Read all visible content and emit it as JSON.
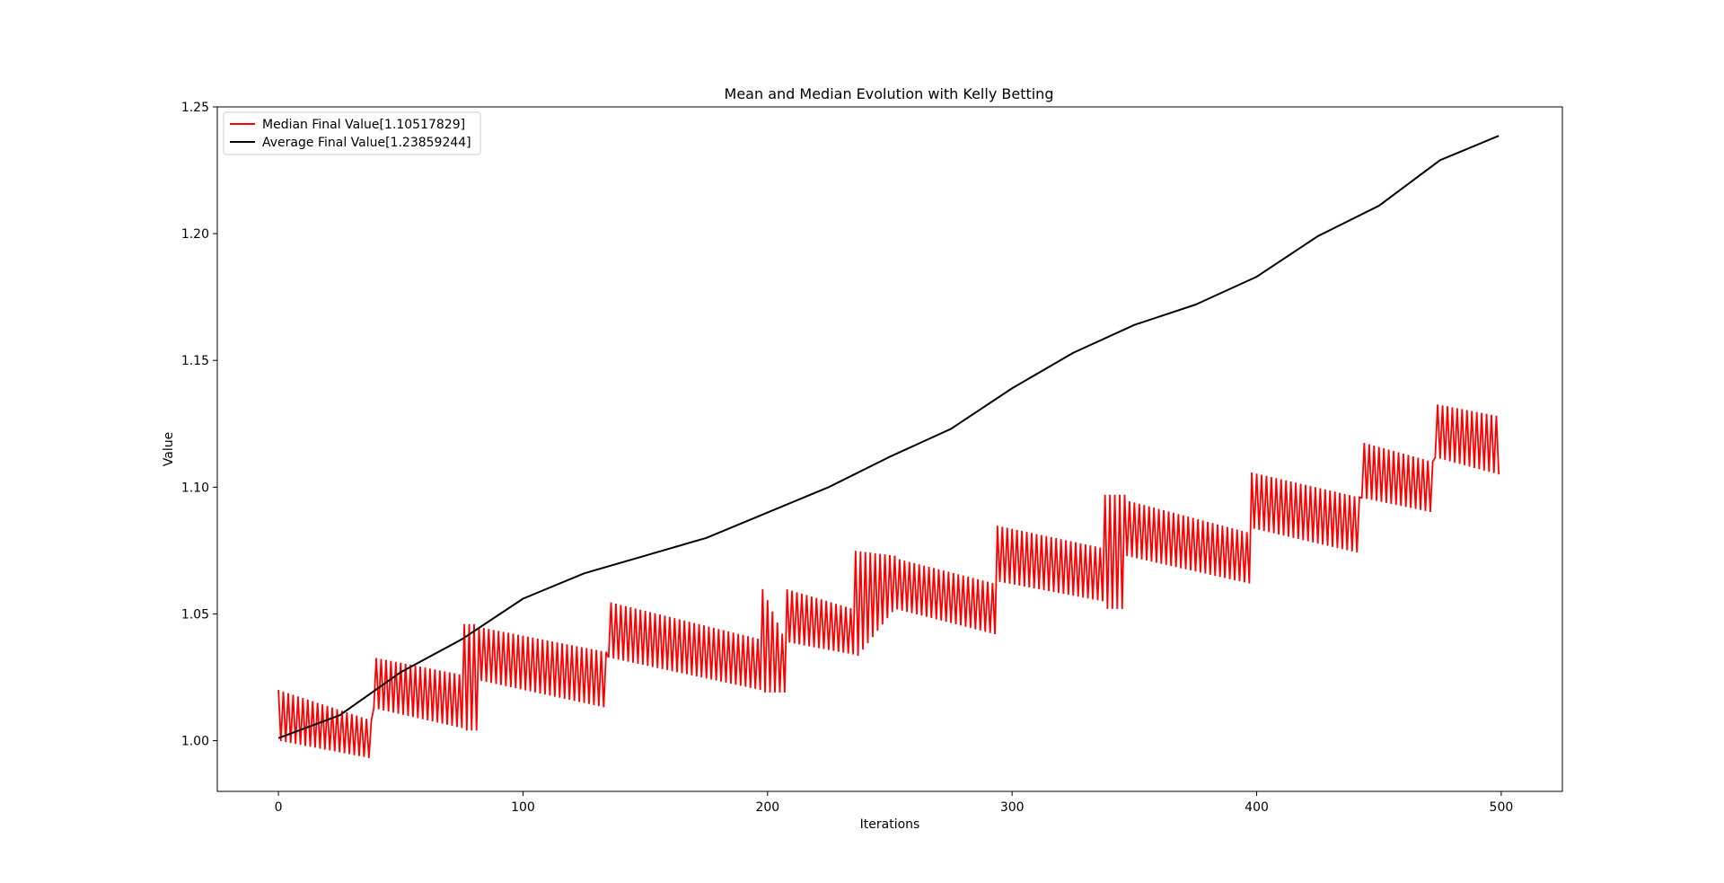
{
  "chart_data": {
    "type": "line",
    "title": "Mean and Median Evolution with Kelly Betting",
    "xlabel": "Iterations",
    "ylabel": "Value",
    "xlim": [
      -25,
      525
    ],
    "ylim": [
      0.98,
      1.25
    ],
    "xticks": [
      0,
      100,
      200,
      300,
      400,
      500
    ],
    "xtick_labels": [
      "0",
      "100",
      "200",
      "300",
      "400",
      "500"
    ],
    "yticks": [
      1.0,
      1.05,
      1.1,
      1.15,
      1.2,
      1.25
    ],
    "ytick_labels": [
      "1.00",
      "1.05",
      "1.10",
      "1.15",
      "1.20",
      "1.25"
    ],
    "legend_position": "upper-left",
    "grid": false,
    "series": [
      {
        "name": "Median Final Value[1.10517829]",
        "color": "#ff0000",
        "kind": "oscillating",
        "x_range": [
          0,
          500
        ],
        "envelope": [
          {
            "x": [
              0,
              38
            ],
            "upper": [
              1.02,
              1.008
            ],
            "lower": [
              1.0,
              0.993
            ]
          },
          {
            "x": [
              38,
              75
            ],
            "upper": [
              1.033,
              1.026
            ],
            "lower": [
              1.013,
              1.005
            ]
          },
          {
            "x": [
              75,
              81
            ],
            "upper": [
              1.046,
              1.046
            ],
            "lower": [
              1.004,
              1.004
            ]
          },
          {
            "x": [
              81,
              134
            ],
            "upper": [
              1.045,
              1.035
            ],
            "lower": [
              1.024,
              1.013
            ]
          },
          {
            "x": [
              134,
              197
            ],
            "upper": [
              1.055,
              1.04
            ],
            "lower": [
              1.033,
              1.02
            ]
          },
          {
            "x": [
              197,
              207
            ],
            "upper": [
              1.062,
              1.04
            ],
            "lower": [
              1.019,
              1.019
            ]
          },
          {
            "x": [
              207,
              235
            ],
            "upper": [
              1.06,
              1.052
            ],
            "lower": [
              1.039,
              1.034
            ]
          },
          {
            "x": [
              235,
              252
            ],
            "upper": [
              1.075,
              1.073
            ],
            "lower": [
              1.031,
              1.052
            ]
          },
          {
            "x": [
              252,
              293
            ],
            "upper": [
              1.072,
              1.062
            ],
            "lower": [
              1.052,
              1.042
            ]
          },
          {
            "x": [
              293,
              337
            ],
            "upper": [
              1.085,
              1.076
            ],
            "lower": [
              1.063,
              1.055
            ]
          },
          {
            "x": [
              337,
              346
            ],
            "upper": [
              1.097,
              1.097
            ],
            "lower": [
              1.052,
              1.052
            ]
          },
          {
            "x": [
              346,
              397
            ],
            "upper": [
              1.095,
              1.082
            ],
            "lower": [
              1.073,
              1.062
            ]
          },
          {
            "x": [
              397,
              442
            ],
            "upper": [
              1.106,
              1.096
            ],
            "lower": [
              1.084,
              1.074
            ]
          },
          {
            "x": [
              442,
              472
            ],
            "upper": [
              1.118,
              1.11
            ],
            "lower": [
              1.096,
              1.09
            ]
          },
          {
            "x": [
              472,
              499
            ],
            "upper": [
              1.133,
              1.128
            ],
            "lower": [
              1.112,
              1.105
            ]
          }
        ],
        "final": 1.10517829
      },
      {
        "name": "Average Final Value[1.23859244]",
        "color": "#000000",
        "kind": "smooth",
        "x": [
          0,
          25,
          50,
          75,
          100,
          125,
          150,
          175,
          200,
          225,
          250,
          275,
          300,
          325,
          350,
          375,
          400,
          425,
          450,
          475,
          499
        ],
        "y": [
          1.001,
          1.01,
          1.027,
          1.04,
          1.056,
          1.066,
          1.073,
          1.08,
          1.09,
          1.1,
          1.112,
          1.123,
          1.139,
          1.153,
          1.164,
          1.172,
          1.183,
          1.199,
          1.211,
          1.229,
          1.2386
        ],
        "final": 1.23859244
      }
    ]
  }
}
